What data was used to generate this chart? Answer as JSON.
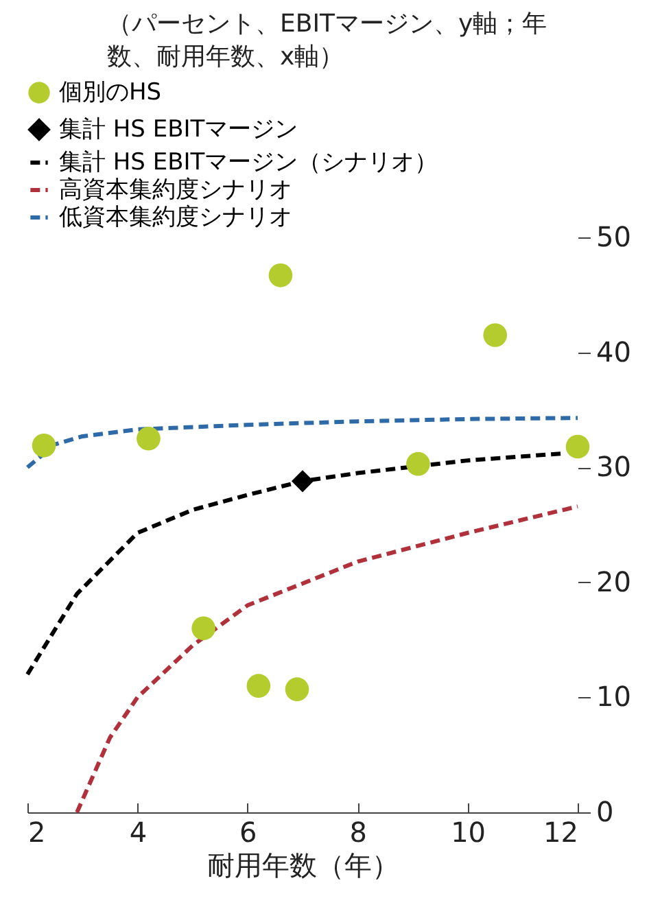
{
  "chart_data": {
    "type": "scatter",
    "title": "（パーセント、EBITマージン、y軸；年数、耐用年数、x軸）",
    "xlabel": "耐用年数（年）",
    "xlim": [
      2,
      12
    ],
    "xticks": [
      2,
      4,
      6,
      8,
      10,
      12
    ],
    "ylim": [
      0,
      50
    ],
    "yticks": [
      0,
      10,
      20,
      30,
      40,
      50
    ],
    "grid": false,
    "legend": "top",
    "series": [
      {
        "name": "個別のHS",
        "type": "scatter",
        "marker": "circle",
        "color": "#b5cc2e",
        "x": [
          2.3,
          4.2,
          5.2,
          6.2,
          6.6,
          6.9,
          9.1,
          10.5,
          12
        ],
        "values": [
          31.9,
          32.5,
          16,
          11,
          46.7,
          10.7,
          30.3,
          41.5,
          31.8
        ]
      },
      {
        "name": "集計 HS EBITマージン",
        "type": "scatter",
        "marker": "diamond",
        "color": "#000000",
        "x": [
          7
        ],
        "values": [
          28.8
        ]
      },
      {
        "name": "集計 HS EBITマージン（シナリオ）",
        "type": "line",
        "line_style": "dashed",
        "color": "#000000",
        "x": [
          2,
          2.9,
          4,
          5,
          6,
          7,
          8,
          10,
          11.7
        ],
        "values": [
          12,
          19,
          24.3,
          26.3,
          27.6,
          28.8,
          29.5,
          30.6,
          31.2
        ]
      },
      {
        "name": "高資本集約度シナリオ",
        "type": "line",
        "line_style": "dashed",
        "color": "#b0313c",
        "x": [
          2.9,
          3.5,
          4,
          5,
          6,
          8,
          10,
          12
        ],
        "values": [
          0,
          6.5,
          10,
          14.5,
          18,
          21.8,
          24.3,
          26.6
        ]
      },
      {
        "name": "低資本集約度シナリオ",
        "type": "line",
        "line_style": "dashed",
        "color": "#2f6aa8",
        "x": [
          2,
          2.5,
          3,
          4,
          6,
          8,
          10,
          12
        ],
        "values": [
          30,
          32,
          32.7,
          33.3,
          33.7,
          34,
          34.2,
          34.3
        ]
      }
    ]
  }
}
